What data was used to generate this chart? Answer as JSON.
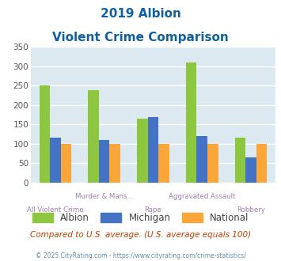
{
  "title_line1": "2019 Albion",
  "title_line2": "Violent Crime Comparison",
  "categories": [
    "All Violent Crime",
    "Murder & Mans...",
    "Rape",
    "Aggravated Assault",
    "Robbery"
  ],
  "albion": [
    250,
    238,
    165,
    310,
    117
  ],
  "michigan": [
    117,
    111,
    170,
    121,
    65
  ],
  "national": [
    100,
    100,
    100,
    100,
    100
  ],
  "color_albion": "#8dc63f",
  "color_michigan": "#4472c4",
  "color_national": "#faa63a",
  "ylim": [
    0,
    350
  ],
  "yticks": [
    0,
    50,
    100,
    150,
    200,
    250,
    300,
    350
  ],
  "bg_color": "#dce9f0",
  "title_color": "#1060a0",
  "xlabel_color": "#9b7fa8",
  "note_text": "Compared to U.S. average. (U.S. average equals 100)",
  "footer_text": "© 2025 CityRating.com - https://www.cityrating.com/crime-statistics/",
  "note_color": "#c04000",
  "footer_color": "#6090b0",
  "grid_color": "#ffffff",
  "bar_width": 0.22
}
